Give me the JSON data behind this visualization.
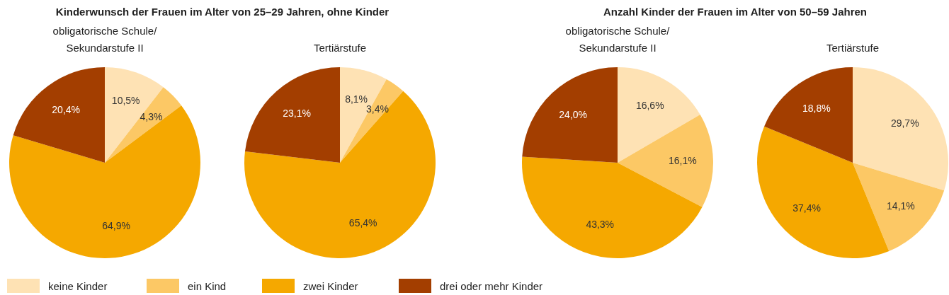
{
  "chart_data": [
    {
      "type": "pie",
      "title": "Kinderwunsch der Frauen im Alter von 25–29 Jahren, ohne Kinder",
      "subtitle": "obligatorische Schule/\nSekundarstufe II",
      "categories": [
        "keine Kinder",
        "ein Kind",
        "zwei Kinder",
        "drei oder mehr Kinder"
      ],
      "values": [
        10.5,
        4.3,
        64.9,
        20.4
      ],
      "value_labels": [
        "10,5%",
        "4,3%",
        "64,9%",
        "20,4%"
      ],
      "colors": [
        "#fee2b4",
        "#fcc865",
        "#f5a800",
        "#a33e00"
      ],
      "legend": "bottom"
    },
    {
      "type": "pie",
      "subtitle": "Tertiärstufe",
      "categories": [
        null,
        null,
        null,
        null
      ],
      "values": [
        8.1,
        3.4,
        65.4,
        23.1
      ],
      "value_labels": [
        "8,1%",
        "3,4%",
        "65,4%",
        "23,1%"
      ],
      "colors": [
        "#fee2b4",
        "#fcc865",
        "#f5a800",
        "#a33e00"
      ]
    },
    {
      "type": "pie",
      "title": "Anzahl Kinder der Frauen im Alter von 50–59 Jahren",
      "subtitle": "obligatorische Schule/\nSekundarstufe II",
      "categories": [
        null,
        null,
        null,
        null
      ],
      "values": [
        16.6,
        16.1,
        43.3,
        24.0
      ],
      "value_labels": [
        "16,6%",
        "16,1%",
        "43,3%",
        "24,0%"
      ],
      "colors": [
        "#fee2b4",
        "#fcc865",
        "#f5a800",
        "#a33e00"
      ]
    },
    {
      "type": "pie",
      "subtitle": "Tertiärstufe",
      "categories": [
        null,
        null,
        null,
        null
      ],
      "values": [
        29.7,
        14.1,
        37.4,
        18.8
      ],
      "value_labels": [
        "29,7%",
        "14,1%",
        "37,4%",
        "18,8%"
      ],
      "colors": [
        "#fee2b4",
        "#fcc865",
        "#f5a800",
        "#a33e00"
      ]
    }
  ]
}
